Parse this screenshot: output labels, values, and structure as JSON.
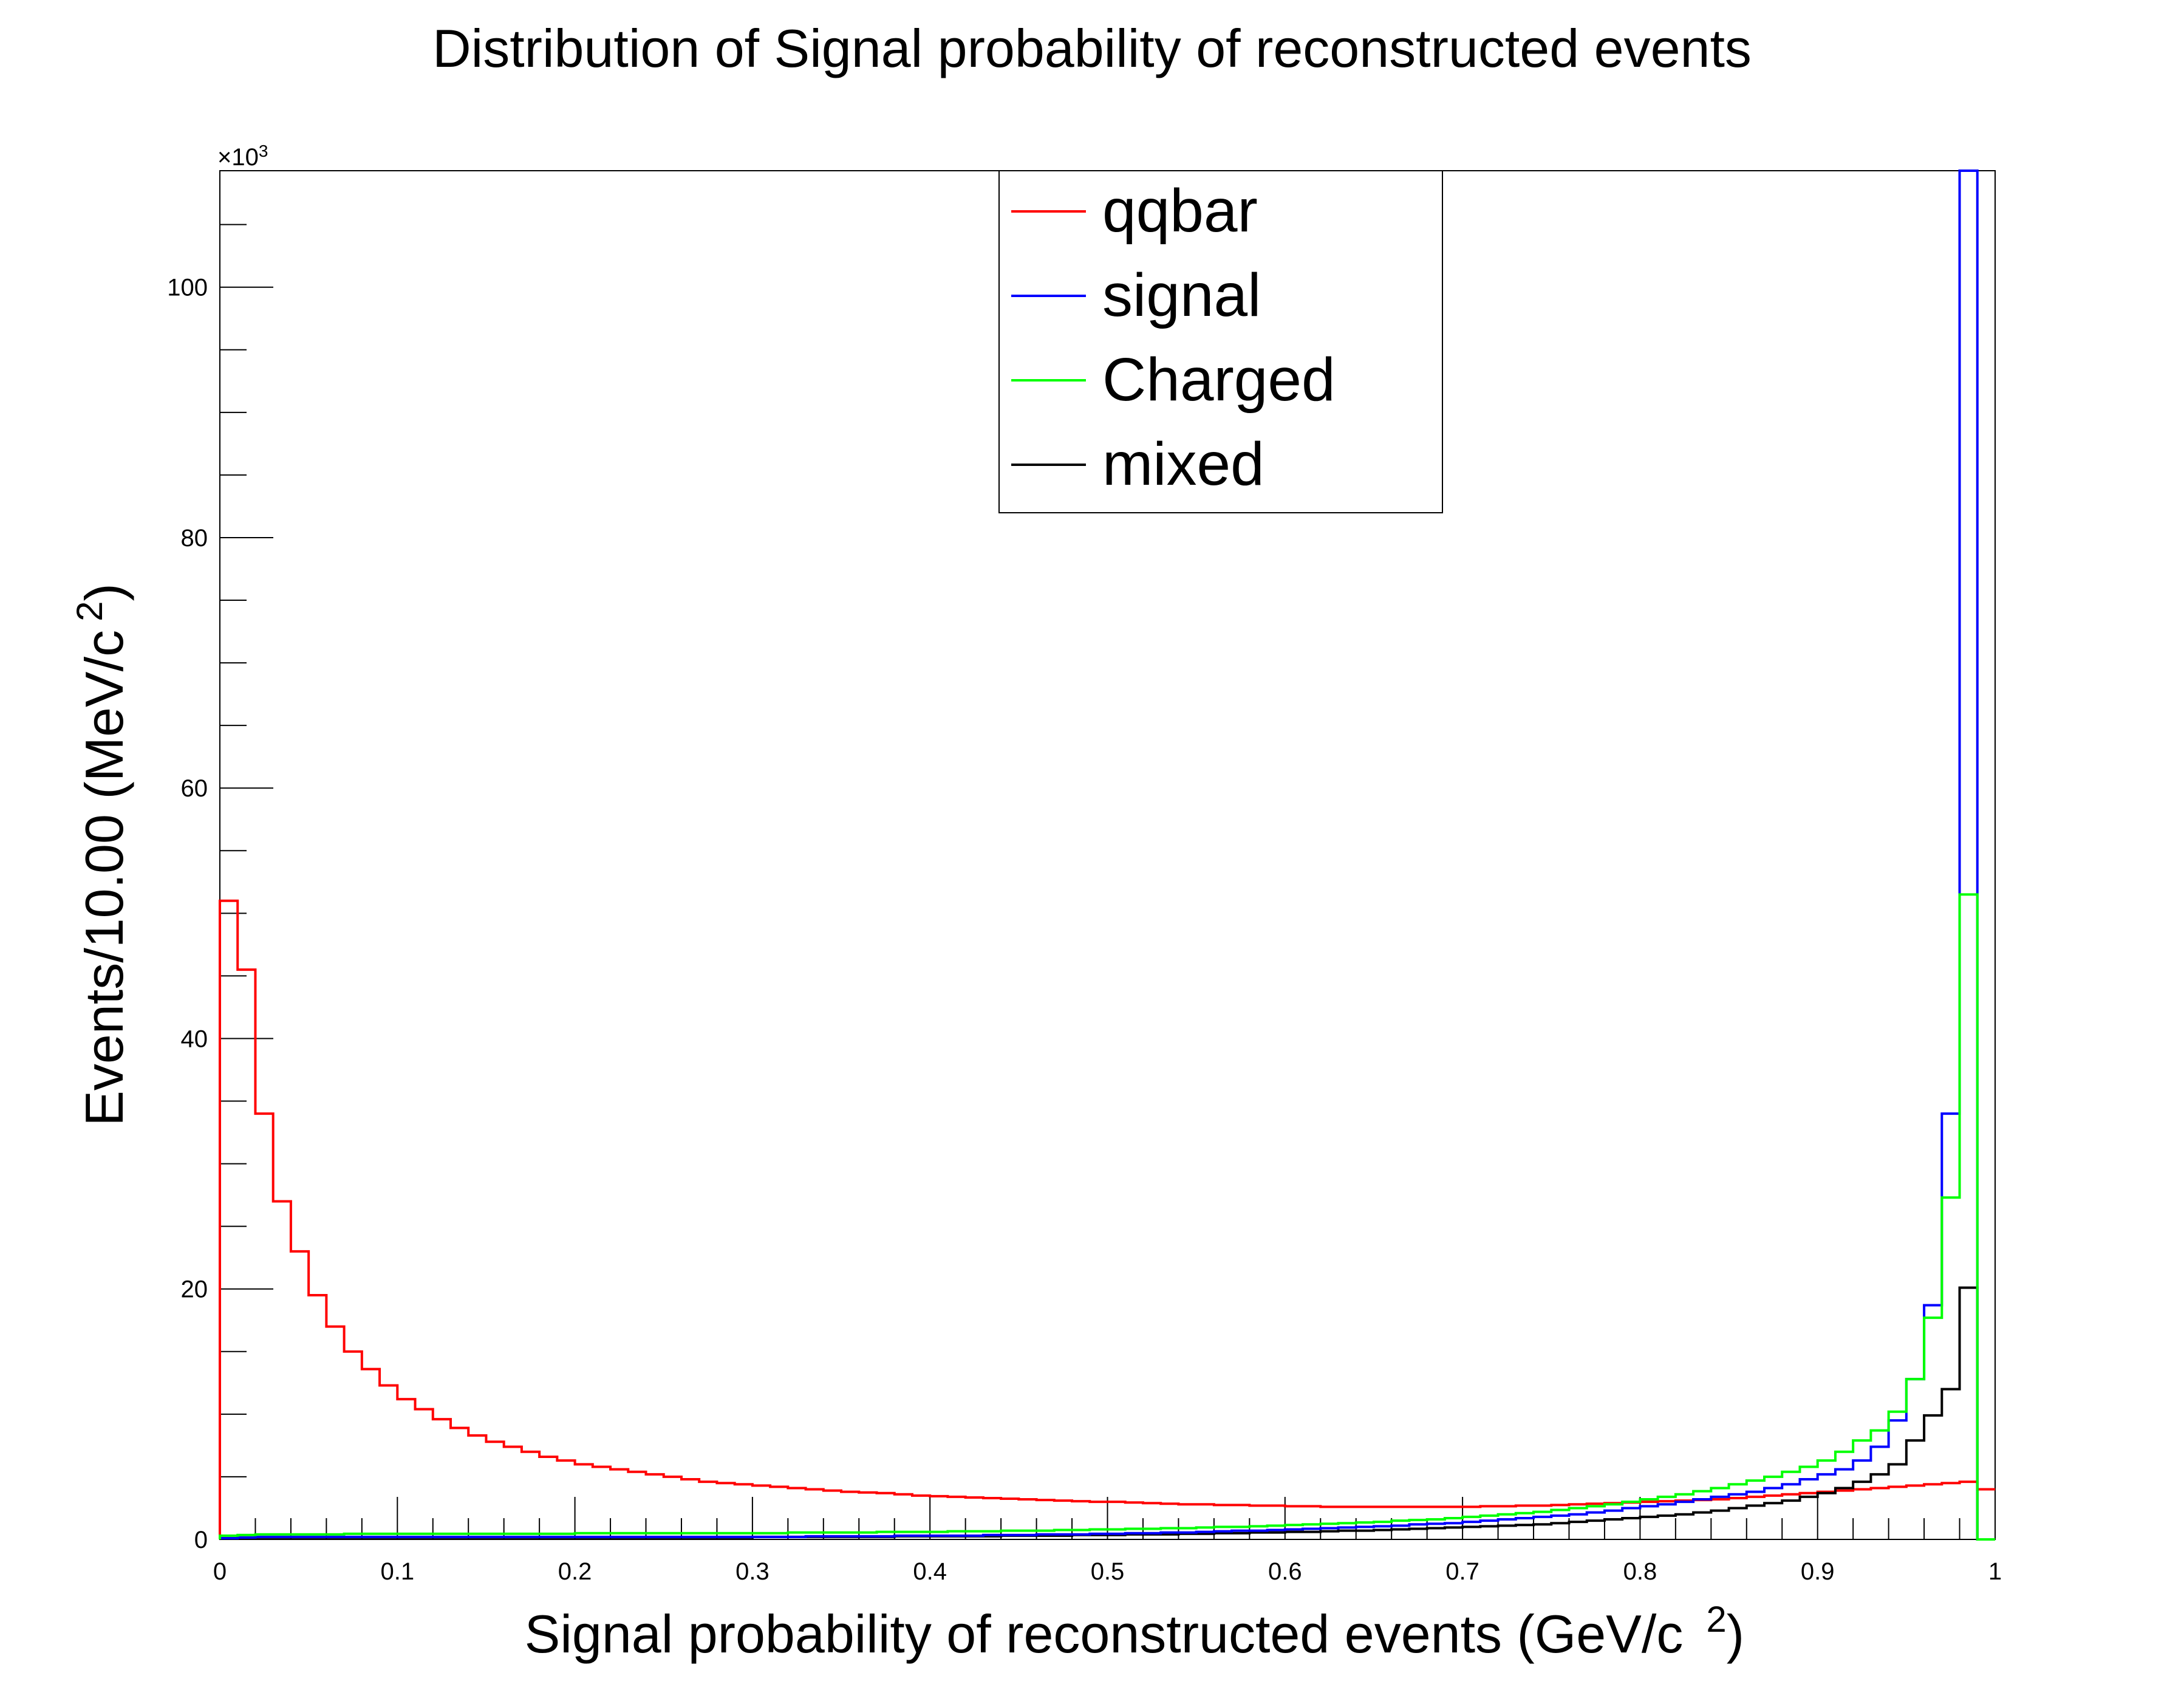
{
  "chart_data": {
    "type": "line",
    "title": "Distribution of Signal probability of reconstructed events",
    "xlabel": "Signal probability of reconstructed events  (GeV/c",
    "xlabel_sup": "2",
    "xlabel_close": ")",
    "ylabel": "Events/10.00 (MeV/c",
    "ylabel_sup": "2",
    "ylabel_close": ")",
    "y_multiplier": "×10",
    "y_multiplier_exp": "3",
    "xlim": [
      0,
      1
    ],
    "ylim": [
      0,
      109.3
    ],
    "bin_width": 0.01,
    "x_ticks": [
      "0",
      "0.1",
      "0.2",
      "0.3",
      "0.4",
      "0.5",
      "0.6",
      "0.7",
      "0.8",
      "0.9",
      "1"
    ],
    "y_ticks": [
      "0",
      "20",
      "40",
      "60",
      "80",
      "100"
    ],
    "grid": false,
    "legend_position": "top-center",
    "series": [
      {
        "name": "qqbar",
        "color": "#ff0000",
        "values": [
          51.0,
          45.5,
          34.0,
          27.0,
          23.0,
          19.5,
          17.0,
          15.0,
          13.6,
          12.3,
          11.2,
          10.4,
          9.6,
          8.9,
          8.3,
          7.8,
          7.4,
          7.0,
          6.6,
          6.3,
          6.0,
          5.8,
          5.6,
          5.4,
          5.2,
          5.0,
          4.8,
          4.6,
          4.5,
          4.4,
          4.3,
          4.2,
          4.1,
          4.0,
          3.9,
          3.8,
          3.75,
          3.7,
          3.6,
          3.5,
          3.45,
          3.4,
          3.35,
          3.3,
          3.25,
          3.2,
          3.15,
          3.1,
          3.05,
          3.0,
          3.0,
          2.95,
          2.9,
          2.85,
          2.8,
          2.8,
          2.75,
          2.75,
          2.7,
          2.7,
          2.65,
          2.65,
          2.6,
          2.6,
          2.6,
          2.6,
          2.6,
          2.6,
          2.6,
          2.6,
          2.6,
          2.65,
          2.65,
          2.7,
          2.7,
          2.75,
          2.8,
          2.85,
          2.9,
          2.95,
          3.0,
          3.05,
          3.1,
          3.15,
          3.2,
          3.3,
          3.4,
          3.5,
          3.6,
          3.7,
          3.8,
          3.9,
          4.0,
          4.1,
          4.2,
          4.3,
          4.4,
          4.5,
          4.6,
          4.0
        ]
      },
      {
        "name": "signal",
        "color": "#0000ff",
        "values": [
          0.1,
          0.15,
          0.2,
          0.2,
          0.2,
          0.2,
          0.2,
          0.2,
          0.2,
          0.2,
          0.2,
          0.2,
          0.2,
          0.2,
          0.2,
          0.2,
          0.2,
          0.2,
          0.2,
          0.2,
          0.2,
          0.2,
          0.2,
          0.2,
          0.2,
          0.2,
          0.2,
          0.2,
          0.2,
          0.2,
          0.2,
          0.2,
          0.2,
          0.25,
          0.25,
          0.25,
          0.25,
          0.25,
          0.3,
          0.3,
          0.3,
          0.3,
          0.3,
          0.35,
          0.35,
          0.35,
          0.4,
          0.4,
          0.4,
          0.45,
          0.45,
          0.5,
          0.5,
          0.55,
          0.55,
          0.6,
          0.65,
          0.7,
          0.7,
          0.75,
          0.8,
          0.85,
          0.9,
          0.95,
          1.0,
          1.05,
          1.1,
          1.2,
          1.25,
          1.3,
          1.4,
          1.5,
          1.6,
          1.7,
          1.8,
          1.9,
          2.0,
          2.15,
          2.3,
          2.5,
          2.65,
          2.8,
          3.0,
          3.2,
          3.4,
          3.6,
          3.8,
          4.1,
          4.4,
          4.8,
          5.2,
          5.6,
          6.3,
          7.4,
          9.5,
          12.8,
          18.7,
          34.0,
          109.3,
          0.0
        ]
      },
      {
        "name": "Charged",
        "color": "#00ff00",
        "values": [
          0.3,
          0.35,
          0.4,
          0.4,
          0.4,
          0.4,
          0.4,
          0.45,
          0.45,
          0.45,
          0.45,
          0.45,
          0.45,
          0.45,
          0.45,
          0.45,
          0.45,
          0.45,
          0.45,
          0.45,
          0.5,
          0.5,
          0.5,
          0.5,
          0.5,
          0.5,
          0.5,
          0.5,
          0.5,
          0.5,
          0.5,
          0.5,
          0.55,
          0.55,
          0.55,
          0.55,
          0.55,
          0.6,
          0.6,
          0.6,
          0.6,
          0.65,
          0.65,
          0.65,
          0.7,
          0.7,
          0.7,
          0.75,
          0.75,
          0.8,
          0.8,
          0.85,
          0.85,
          0.9,
          0.9,
          0.95,
          1.0,
          1.0,
          1.05,
          1.1,
          1.15,
          1.2,
          1.25,
          1.3,
          1.35,
          1.4,
          1.5,
          1.55,
          1.6,
          1.7,
          1.8,
          1.9,
          2.0,
          2.1,
          2.2,
          2.35,
          2.5,
          2.65,
          2.8,
          3.0,
          3.2,
          3.4,
          3.6,
          3.85,
          4.1,
          4.4,
          4.7,
          5.0,
          5.4,
          5.8,
          6.3,
          7.0,
          7.9,
          8.7,
          10.2,
          12.8,
          17.7,
          27.3,
          51.5,
          0.0
        ]
      },
      {
        "name": "mixed",
        "color": "#000000",
        "values": [
          0.1,
          0.15,
          0.15,
          0.15,
          0.15,
          0.15,
          0.15,
          0.15,
          0.15,
          0.15,
          0.15,
          0.15,
          0.15,
          0.15,
          0.15,
          0.15,
          0.15,
          0.15,
          0.15,
          0.15,
          0.15,
          0.15,
          0.15,
          0.15,
          0.15,
          0.15,
          0.15,
          0.15,
          0.15,
          0.15,
          0.2,
          0.2,
          0.2,
          0.2,
          0.2,
          0.2,
          0.2,
          0.2,
          0.25,
          0.25,
          0.25,
          0.25,
          0.25,
          0.25,
          0.3,
          0.3,
          0.3,
          0.3,
          0.35,
          0.35,
          0.35,
          0.4,
          0.4,
          0.4,
          0.45,
          0.45,
          0.5,
          0.5,
          0.55,
          0.55,
          0.6,
          0.6,
          0.65,
          0.7,
          0.7,
          0.75,
          0.8,
          0.85,
          0.9,
          0.95,
          1.0,
          1.05,
          1.1,
          1.15,
          1.2,
          1.3,
          1.4,
          1.5,
          1.6,
          1.7,
          1.8,
          1.9,
          2.0,
          2.15,
          2.3,
          2.5,
          2.7,
          2.9,
          3.1,
          3.4,
          3.7,
          4.1,
          4.6,
          5.2,
          6.0,
          7.9,
          9.9,
          12.0,
          20.1,
          0.0
        ]
      }
    ]
  }
}
